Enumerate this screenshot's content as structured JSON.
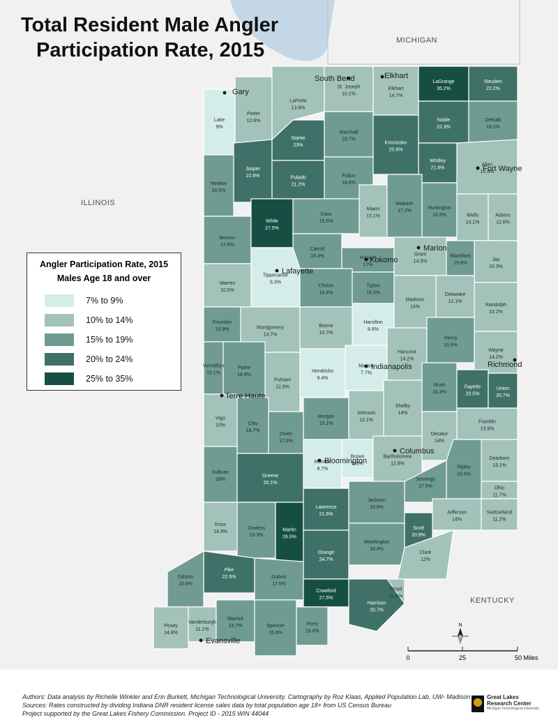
{
  "title": {
    "line1": "Total Resident Male Angler",
    "line2": "Participation Rate, 2015"
  },
  "legend": {
    "title": "Angler Participation Rate, 2015",
    "subtitle": "Males Age 18 and over",
    "classes": [
      {
        "label": "7% to 9%",
        "color": "#d4ede8"
      },
      {
        "label": "10% to 14%",
        "color": "#a2c2ba"
      },
      {
        "label": "15% to 19%",
        "color": "#6f9b92"
      },
      {
        "label": "20% to 24%",
        "color": "#3f7168"
      },
      {
        "label": "25% to 35%",
        "color": "#164e44"
      }
    ]
  },
  "state_labels": {
    "michigan": "MICHIGAN",
    "illinois": "ILLINOIS",
    "kentucky": "KENTUCKY"
  },
  "cities": [
    {
      "name": "Gary"
    },
    {
      "name": "South Bend"
    },
    {
      "name": "Elkhart"
    },
    {
      "name": "Fort Wayne"
    },
    {
      "name": "Marion"
    },
    {
      "name": "Kokomo"
    },
    {
      "name": "Lafayette"
    },
    {
      "name": "Indianapolis"
    },
    {
      "name": "Richmond"
    },
    {
      "name": "Terre Haute"
    },
    {
      "name": "Bloomington"
    },
    {
      "name": "Columbus"
    },
    {
      "name": "Evansville"
    }
  ],
  "counties": [
    {
      "name": "Lake",
      "rate": "9%",
      "class": 0
    },
    {
      "name": "Porter",
      "rate": "12.8%",
      "class": 1
    },
    {
      "name": "LaPorte",
      "rate": "13.9%",
      "class": 1
    },
    {
      "name": "St. Joseph",
      "rate": "10.1%",
      "class": 1
    },
    {
      "name": "Elkhart",
      "rate": "14.7%",
      "class": 1
    },
    {
      "name": "LaGrange",
      "rate": "35.2%",
      "class": 4
    },
    {
      "name": "Steuben",
      "rate": "22.2%",
      "class": 3
    },
    {
      "name": "Newton",
      "rate": "16.5%",
      "class": 2
    },
    {
      "name": "Jasper",
      "rate": "22.6%",
      "class": 3
    },
    {
      "name": "Starke",
      "rate": "23%",
      "class": 3
    },
    {
      "name": "Pulaski",
      "rate": "21.2%",
      "class": 3
    },
    {
      "name": "Marshall",
      "rate": "19.7%",
      "class": 2
    },
    {
      "name": "Fulton",
      "rate": "19.6%",
      "class": 2
    },
    {
      "name": "Kosciusko",
      "rate": "20.9%",
      "class": 3
    },
    {
      "name": "Noble",
      "rate": "22.3%",
      "class": 3
    },
    {
      "name": "DeKalb",
      "rate": "18.2%",
      "class": 2
    },
    {
      "name": "Whitley",
      "rate": "21.8%",
      "class": 3
    },
    {
      "name": "Allen",
      "rate": "10.6%",
      "class": 1
    },
    {
      "name": "Benton",
      "rate": "17.6%",
      "class": 2
    },
    {
      "name": "White",
      "rate": "27.5%",
      "class": 4
    },
    {
      "name": "Cass",
      "rate": "15.5%",
      "class": 2
    },
    {
      "name": "Miami",
      "rate": "13.1%",
      "class": 1
    },
    {
      "name": "Wabash",
      "rate": "17.2%",
      "class": 2
    },
    {
      "name": "Huntington",
      "rate": "16.5%",
      "class": 2
    },
    {
      "name": "Wells",
      "rate": "14.1%",
      "class": 1
    },
    {
      "name": "Adams",
      "rate": "12.6%",
      "class": 1
    },
    {
      "name": "Warren",
      "rate": "10.5%",
      "class": 1
    },
    {
      "name": "Tippecanoe",
      "rate": "8.3%",
      "class": 0
    },
    {
      "name": "Carroll",
      "rate": "18.3%",
      "class": 2
    },
    {
      "name": "Howard",
      "rate": "17%",
      "class": 2
    },
    {
      "name": "Grant",
      "rate": "14.9%",
      "class": 1
    },
    {
      "name": "Blackford",
      "rate": "19.6%",
      "class": 2
    },
    {
      "name": "Jay",
      "rate": "10.3%",
      "class": 1
    },
    {
      "name": "Clinton",
      "rate": "16.4%",
      "class": 2
    },
    {
      "name": "Tipton",
      "rate": "16.3%",
      "class": 2
    },
    {
      "name": "Fountain",
      "rate": "19.9%",
      "class": 2
    },
    {
      "name": "Montgomery",
      "rate": "14.7%",
      "class": 1
    },
    {
      "name": "Boone",
      "rate": "10.7%",
      "class": 1
    },
    {
      "name": "Hamilton",
      "rate": "8.6%",
      "class": 0
    },
    {
      "name": "Madison",
      "rate": "14%",
      "class": 1
    },
    {
      "name": "Delaware",
      "rate": "12.1%",
      "class": 1
    },
    {
      "name": "Randolph",
      "rate": "13.2%",
      "class": 1
    },
    {
      "name": "Vermillion",
      "rate": "15.1%",
      "class": 2
    },
    {
      "name": "Parke",
      "rate": "18.9%",
      "class": 2
    },
    {
      "name": "Putnam",
      "rate": "12.9%",
      "class": 1
    },
    {
      "name": "Hendricks",
      "rate": "9.4%",
      "class": 0
    },
    {
      "name": "Marion",
      "rate": "7.7%",
      "class": 0
    },
    {
      "name": "Hancock",
      "rate": "14.2%",
      "class": 1
    },
    {
      "name": "Henry",
      "rate": "15.6%",
      "class": 2
    },
    {
      "name": "Wayne",
      "rate": "14.2%",
      "class": 1
    },
    {
      "name": "Vigo",
      "rate": "10%",
      "class": 1
    },
    {
      "name": "Clay",
      "rate": "18.7%",
      "class": 2
    },
    {
      "name": "Owen",
      "rate": "17.9%",
      "class": 2
    },
    {
      "name": "Morgan",
      "rate": "15.1%",
      "class": 2
    },
    {
      "name": "Johnson",
      "rate": "12.1%",
      "class": 1
    },
    {
      "name": "Shelby",
      "rate": "14%",
      "class": 1
    },
    {
      "name": "Rush",
      "rate": "16.3%",
      "class": 2
    },
    {
      "name": "Fayette",
      "rate": "20.5%",
      "class": 3
    },
    {
      "name": "Union",
      "rate": "20.7%",
      "class": 3
    },
    {
      "name": "Franklin",
      "rate": "13.9%",
      "class": 1
    },
    {
      "name": "Sullivan",
      "rate": "18%",
      "class": 2
    },
    {
      "name": "Greene",
      "rate": "20.1%",
      "class": 3
    },
    {
      "name": "Monroe",
      "rate": "8.7%",
      "class": 0
    },
    {
      "name": "Brown",
      "rate": "8.6%",
      "class": 0
    },
    {
      "name": "Bartholomew",
      "rate": "12.8%",
      "class": 1
    },
    {
      "name": "Decatur",
      "rate": "14%",
      "class": 1
    },
    {
      "name": "Dearborn",
      "rate": "13.1%",
      "class": 1
    },
    {
      "name": "Ripley",
      "rate": "16.6%",
      "class": 2
    },
    {
      "name": "Jennings",
      "rate": "17.5%",
      "class": 2
    },
    {
      "name": "Ohio",
      "rate": "11.7%",
      "class": 1
    },
    {
      "name": "Knox",
      "rate": "14.3%",
      "class": 1
    },
    {
      "name": "Daviess",
      "rate": "19.3%",
      "class": 2
    },
    {
      "name": "Martin",
      "rate": "26.5%",
      "class": 4
    },
    {
      "name": "Lawrence",
      "rate": "21.6%",
      "class": 3
    },
    {
      "name": "Jackson",
      "rate": "19.9%",
      "class": 2
    },
    {
      "name": "Jefferson",
      "rate": "14%",
      "class": 1
    },
    {
      "name": "Switzerland",
      "rate": "11.2%",
      "class": 1
    },
    {
      "name": "Scott",
      "rate": "20.9%",
      "class": 3
    },
    {
      "name": "Washington",
      "rate": "18.4%",
      "class": 2
    },
    {
      "name": "Orange",
      "rate": "24.7%",
      "class": 3
    },
    {
      "name": "Clark",
      "rate": "12%",
      "class": 1
    },
    {
      "name": "Pike",
      "rate": "22.5%",
      "class": 3
    },
    {
      "name": "Gibson",
      "rate": "15.6%",
      "class": 2
    },
    {
      "name": "Dubois",
      "rate": "17.5%",
      "class": 2
    },
    {
      "name": "Crawford",
      "rate": "27.5%",
      "class": 4
    },
    {
      "name": "Floyd",
      "rate": "11.9%",
      "class": 1
    },
    {
      "name": "Harrison",
      "rate": "20.7%",
      "class": 3
    },
    {
      "name": "Posey",
      "rate": "14.8%",
      "class": 1
    },
    {
      "name": "Vanderburgh",
      "rate": "11.1%",
      "class": 1
    },
    {
      "name": "Warrick",
      "rate": "15.7%",
      "class": 2
    },
    {
      "name": "Spencer",
      "rate": "15.8%",
      "class": 2
    },
    {
      "name": "Perry",
      "rate": "18.4%",
      "class": 2
    }
  ],
  "scale_bar": {
    "labels": [
      "0",
      "25",
      "50 Miles"
    ]
  },
  "north_arrow": {
    "label": "N"
  },
  "footer": {
    "line1": "Authors: Data analysis by Richelle Winkler and Erin Burkett, Michigan Technological University. Cartography by Roz Klaas, Applied Population Lab, UW- Madison",
    "line2": "Sources: Rates constructed by dividing Indiana DNR resident license sales data by total population age 18+ from US Census Bureau",
    "line3": "Project supported by the Great Lakes Fishery Commission. Project ID - 2015 WIN 44044"
  },
  "logo": {
    "line1": "Great Lakes",
    "line2": "Research Center",
    "line3": "Michigan Technological University"
  },
  "colors": {
    "lake": "#c4d7e6",
    "border_state": "#bdbdbd",
    "background": "#f1f1f1"
  }
}
